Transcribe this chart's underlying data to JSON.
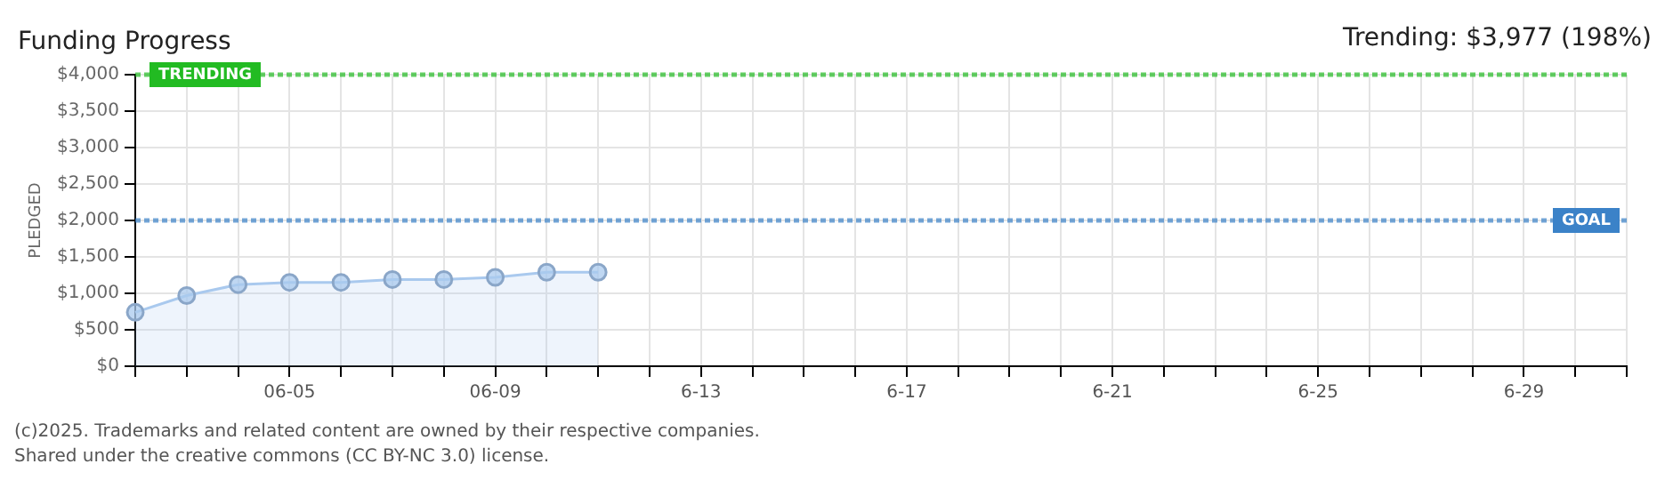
{
  "chart_data": {
    "type": "area",
    "title": "Funding Progress",
    "ylabel": "PLEDGED",
    "annotations": [
      "Trending: $3,977 (198%)",
      "(c)2025. Trademarks and related content are owned by their respective companies.",
      "Shared under the creative commons (CC BY-NC 3.0) license."
    ],
    "x": [
      "--06-02",
      "--06-03",
      "--06-04",
      "--06-05",
      "--06-06",
      "--06-07",
      "--06-08",
      "--06-09",
      "--06-10",
      "--06-11"
    ],
    "series": [
      {
        "color": "#a9c9ee",
        "values": [
          740,
          970,
          1120,
          1150,
          1150,
          1190,
          1190,
          1220,
          1290,
          1290
        ]
      }
    ],
    "xlim": [
      "--06-02",
      "--07-01"
    ],
    "xticks": [
      {
        "value": "--06-02",
        "label": null
      },
      {
        "value": "--06-03",
        "label": null
      },
      {
        "value": "--06-04",
        "label": null
      },
      {
        "value": "--06-05",
        "label": "06-05"
      },
      {
        "value": "--06-06",
        "label": null
      },
      {
        "value": "--06-07",
        "label": null
      },
      {
        "value": "--06-08",
        "label": null
      },
      {
        "value": "--06-09",
        "label": "06-09"
      },
      {
        "value": "--06-10",
        "label": null
      },
      {
        "value": "--06-11",
        "label": null
      },
      {
        "value": "--06-12",
        "label": null
      },
      {
        "value": "--06-13",
        "label": "6-13"
      },
      {
        "value": "--06-14",
        "label": null
      },
      {
        "value": "--06-15",
        "label": null
      },
      {
        "value": "--06-16",
        "label": null
      },
      {
        "value": "--06-17",
        "label": "6-17"
      },
      {
        "value": "--06-18",
        "label": null
      },
      {
        "value": "--06-19",
        "label": null
      },
      {
        "value": "--06-20",
        "label": null
      },
      {
        "value": "--06-21",
        "label": "6-21"
      },
      {
        "value": "--06-22",
        "label": null
      },
      {
        "value": "--06-23",
        "label": null
      },
      {
        "value": "--06-24",
        "label": null
      },
      {
        "value": "--06-25",
        "label": "6-25"
      },
      {
        "value": "--06-26",
        "label": null
      },
      {
        "value": "--06-27",
        "label": null
      },
      {
        "value": "--06-28",
        "label": null
      },
      {
        "value": "--06-29",
        "label": "6-29"
      },
      {
        "value": "--06-30",
        "label": null
      },
      {
        "value": "--07-01",
        "label": null
      }
    ],
    "ylim": [
      0,
      4000
    ],
    "yticks": [
      {
        "value": 0,
        "label": "$0"
      },
      {
        "value": 500,
        "label": "$500"
      },
      {
        "value": 1000,
        "label": "$1,000"
      },
      {
        "value": 1500,
        "label": "$1,500"
      },
      {
        "value": 2000,
        "label": "$2,000"
      },
      {
        "value": 2500,
        "label": "$2,500"
      },
      {
        "value": 3000,
        "label": "$3,000"
      },
      {
        "value": 3500,
        "label": "$3,500"
      },
      {
        "value": 4000,
        "label": "$4,000"
      }
    ],
    "ref_lines": [
      {
        "axis": "y",
        "value": 4000,
        "label": "TRENDING",
        "color": "#22bb22",
        "line_style": "dotted"
      },
      {
        "axis": "y",
        "value": 2000,
        "label": "GOAL",
        "color": "#3b82c8",
        "line_style": "dotted"
      }
    ],
    "grid": true,
    "legend": false,
    "marker": "circle",
    "line_style": "solid"
  }
}
